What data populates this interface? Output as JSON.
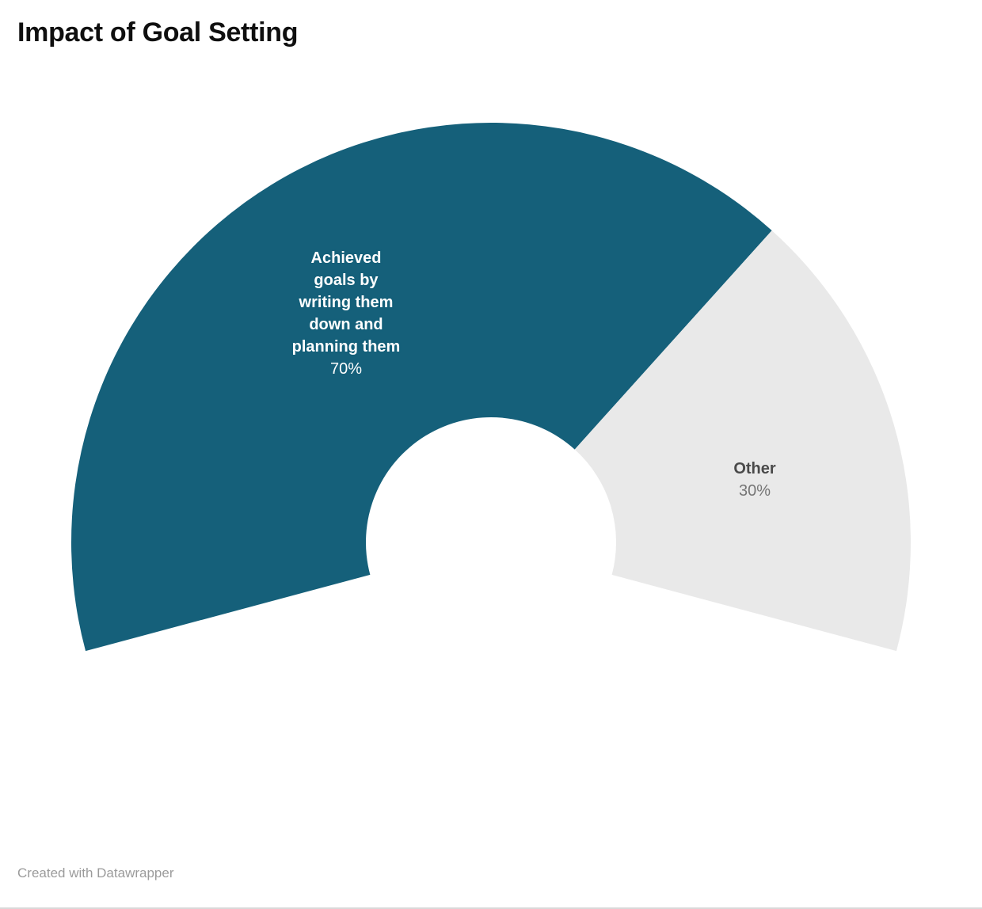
{
  "header": {
    "title": "Impact of Goal Setting"
  },
  "footer": {
    "attribution": "Created with Datawrapper"
  },
  "chart_data": {
    "type": "pie",
    "subtype": "half-donut-gauge",
    "title": "Impact of Goal Setting",
    "categories": [
      "Achieved goals by writing them down and planning them",
      "Other"
    ],
    "values": [
      70,
      30
    ],
    "slices": [
      {
        "label": "Achieved\ngoals by\nwriting them\ndown and\nplanning them",
        "value": 70,
        "percent_label": "70%",
        "color": "#15607a",
        "label_color": "#ffffff"
      },
      {
        "label": "Other",
        "value": 30,
        "percent_label": "30%",
        "color": "#e9e9e9",
        "label_color": "#4a4a4a"
      }
    ],
    "start_angle_deg": 195,
    "total_angle_deg": 210,
    "inner_radius_ratio": 0.3,
    "legend_position": "labels-inside",
    "grid": false
  }
}
